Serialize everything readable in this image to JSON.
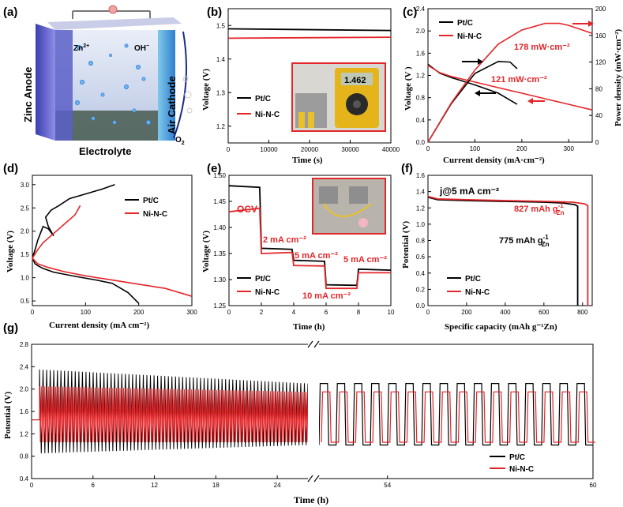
{
  "colors": {
    "black": "#000000",
    "red": "#e4262a",
    "frame": "#000000"
  },
  "panels": {
    "a": {
      "tag": "(a)",
      "zn": "Zn",
      "zn_sup": "2+",
      "oh": "OH",
      "oh_sup": "−",
      "anode": "Zinc Anode",
      "cathode": "Air Cathode",
      "electrolyte": "Electrolyte",
      "o2": "O",
      "o2_sub": "2"
    },
    "b": {
      "tag": "(b)",
      "xlabel": "Time (s)",
      "ylabel": "Voltage (V)",
      "xticks": [
        "0",
        "10000",
        "20000",
        "30000",
        "40000"
      ],
      "yticks": [
        "1.5",
        "1.4",
        "1.3",
        "1.2"
      ],
      "legend": [
        "Pt/C",
        "Ni-N-C"
      ],
      "meter_reading": "1.462"
    },
    "c": {
      "tag": "(c)",
      "xlabel": "Current density (mA·cm⁻²)",
      "ylabel": "Voltage (V )",
      "y2label": "Power density (mW·cm⁻²)",
      "xticks": [
        "0",
        "100",
        "200",
        "300"
      ],
      "yticks": [
        "0.0",
        "0.4",
        "0.8",
        "1.2",
        "1.6",
        "2.0",
        "2.4"
      ],
      "y2ticks": [
        "0",
        "40",
        "80",
        "120",
        "160",
        "200"
      ],
      "legend": [
        "Pt/C",
        "Ni-N-C"
      ],
      "ann1": "178 mW·cm⁻²",
      "ann2": "121 mW·cm⁻²"
    },
    "d": {
      "tag": "(d)",
      "xlabel": "Current density (mA cm⁻²)",
      "ylabel": "Voltage (V)",
      "xticks": [
        "0",
        "100",
        "200",
        "300"
      ],
      "yticks": [
        "0.5",
        "1.0",
        "1.5",
        "2.0",
        "2.5",
        "3.0"
      ],
      "legend": [
        "Pt/C",
        "Ni-N-C"
      ]
    },
    "e": {
      "tag": "(e)",
      "xlabel": "Time (h)",
      "ylabel": "Voltage (V)",
      "xticks": [
        "0",
        "2",
        "4",
        "6",
        "8",
        "10"
      ],
      "yticks": [
        "1.25",
        "1.30",
        "1.35",
        "1.40",
        "1.45",
        "1.50"
      ],
      "legend": [
        "Pt/C",
        "Ni-N-C"
      ],
      "labels": [
        "OCV",
        "2 mA cm⁻²",
        "5 mA cm⁻²",
        "5 mA cm⁻²",
        "10 mA cm⁻²"
      ]
    },
    "f": {
      "tag": "(f)",
      "xlabel": "Specific capacity (mAh g⁻¹Zn)",
      "ylabel": "Potential (V)",
      "xticks": [
        "0",
        "200",
        "400",
        "600",
        "800"
      ],
      "yticks": [
        "0.0",
        "0.2",
        "0.4",
        "0.6",
        "0.8",
        "1.0",
        "1.2",
        "1.4",
        "1.6"
      ],
      "legend": [
        "Pt/C",
        "Ni-N-C"
      ],
      "cond": "j@5 mA cm⁻²",
      "ann_red": "827 mAh g",
      "ann_black": "775 mAh g",
      "sup": "-1",
      "sub": "Zn"
    },
    "g": {
      "tag": "(g)",
      "xlabel": "Time (h)",
      "ylabel": "Potential (V)",
      "xticks": [
        "0",
        "6",
        "12",
        "18",
        "24",
        "54",
        "60"
      ],
      "yticks": [
        "0.4",
        "0.8",
        "1.2",
        "1.6",
        "2.0",
        "2.4",
        "2.8"
      ],
      "legend": [
        "Pt/C",
        "Ni-N-C"
      ]
    }
  },
  "chart_data": [
    {
      "panel": "b",
      "type": "line",
      "xlabel": "Time (s)",
      "ylabel": "Voltage (V)",
      "xlim": [
        0,
        40000
      ],
      "ylim": [
        1.15,
        1.55
      ],
      "series": [
        {
          "name": "Pt/C",
          "x": [
            0,
            40000
          ],
          "y": [
            1.49,
            1.485
          ]
        },
        {
          "name": "Ni-N-C",
          "x": [
            0,
            40000
          ],
          "y": [
            1.462,
            1.465
          ]
        }
      ]
    },
    {
      "panel": "c",
      "type": "line",
      "xlabel": "Current density (mA·cm⁻²)",
      "ylabel": "Voltage (V )",
      "xlim": [
        0,
        350
      ],
      "ylim": [
        0,
        2.4
      ],
      "y2lim": [
        0,
        200
      ],
      "series": [
        {
          "name": "Pt/C",
          "axis": "y",
          "x": [
            0,
            25,
            50,
            100,
            150,
            190
          ],
          "y": [
            1.4,
            1.24,
            1.16,
            1.03,
            0.88,
            0.68
          ]
        },
        {
          "name": "Ni-N-C",
          "axis": "y",
          "x": [
            0,
            25,
            50,
            100,
            150,
            200,
            250,
            300,
            350
          ],
          "y": [
            1.38,
            1.25,
            1.18,
            1.08,
            0.98,
            0.88,
            0.78,
            0.68,
            0.58
          ]
        },
        {
          "name": "Pt/C power",
          "axis": "y2",
          "x": [
            0,
            50,
            100,
            150,
            175,
            190
          ],
          "y": [
            0,
            58,
            103,
            121,
            120,
            110
          ]
        },
        {
          "name": "Ni-N-C power",
          "axis": "y2",
          "x": [
            0,
            50,
            100,
            150,
            200,
            250,
            280,
            300,
            350
          ],
          "y": [
            0,
            59,
            108,
            147,
            168,
            178,
            178,
            175,
            163
          ]
        }
      ]
    },
    {
      "panel": "d",
      "type": "line",
      "xlabel": "Current density (mA cm⁻²)",
      "ylabel": "Voltage (V)",
      "xlim": [
        0,
        300
      ],
      "ylim": [
        0.4,
        3.2
      ],
      "series": [
        {
          "name": "Pt/C",
          "x": [
            0,
            5,
            10,
            20,
            40,
            80,
            120,
            150,
            180,
            200
          ],
          "y": [
            1.42,
            1.3,
            1.26,
            1.2,
            1.12,
            1.03,
            0.95,
            0.88,
            0.68,
            0.45
          ]
        },
        {
          "name": "Pt/C charge",
          "x": [
            0,
            5,
            10,
            15,
            20,
            30,
            40,
            30,
            25,
            35,
            50,
            70,
            100,
            130,
            155
          ],
          "y": [
            1.42,
            1.6,
            1.8,
            1.95,
            2.1,
            2.05,
            1.9,
            2.1,
            2.3,
            2.45,
            2.55,
            2.7,
            2.8,
            2.9,
            3.0
          ]
        },
        {
          "name": "Ni-N-C",
          "x": [
            0,
            10,
            30,
            60,
            100,
            150,
            200,
            250,
            300
          ],
          "y": [
            1.42,
            1.3,
            1.22,
            1.13,
            1.04,
            0.95,
            0.86,
            0.77,
            0.6
          ]
        },
        {
          "name": "Ni-N-C charge",
          "x": [
            0,
            10,
            20,
            40,
            60,
            80,
            90
          ],
          "y": [
            1.42,
            1.6,
            1.75,
            1.95,
            2.15,
            2.35,
            2.55
          ]
        }
      ]
    },
    {
      "panel": "e",
      "type": "line",
      "xlabel": "Time (h)",
      "ylabel": "Voltage (V)",
      "xlim": [
        0,
        10
      ],
      "ylim": [
        1.25,
        1.5
      ],
      "series": [
        {
          "name": "Pt/C",
          "x": [
            0,
            1.9,
            2,
            3.9,
            4,
            5.9,
            6,
            7.9,
            8,
            10
          ],
          "y": [
            1.48,
            1.477,
            1.36,
            1.358,
            1.337,
            1.335,
            1.29,
            1.289,
            1.32,
            1.318
          ]
        },
        {
          "name": "Ni-N-C",
          "x": [
            0,
            1.9,
            2,
            3.9,
            4,
            5.9,
            6,
            7.9,
            8,
            10
          ],
          "y": [
            1.43,
            1.437,
            1.35,
            1.352,
            1.327,
            1.326,
            1.283,
            1.283,
            1.313,
            1.313
          ]
        }
      ]
    },
    {
      "panel": "f",
      "type": "line",
      "xlabel": "Specific capacity (mAh g⁻¹Zn)",
      "ylabel": "Potential (V)",
      "xlim": [
        0,
        850
      ],
      "ylim": [
        0,
        1.6
      ],
      "series": [
        {
          "name": "Pt/C",
          "x": [
            0,
            50,
            200,
            400,
            600,
            700,
            760,
            775,
            775
          ],
          "y": [
            1.33,
            1.3,
            1.29,
            1.28,
            1.27,
            1.26,
            1.24,
            1.22,
            0
          ]
        },
        {
          "name": "Ni-N-C",
          "x": [
            0,
            50,
            200,
            400,
            600,
            750,
            810,
            827,
            827
          ],
          "y": [
            1.34,
            1.31,
            1.3,
            1.29,
            1.28,
            1.27,
            1.25,
            1.23,
            0
          ]
        }
      ]
    },
    {
      "panel": "g",
      "type": "line",
      "xlabel": "Time (h)",
      "ylabel": "Potential (V)",
      "ylim": [
        0.4,
        2.8
      ],
      "x_breaks": [
        [
          0,
          27
        ],
        [
          52,
          60
        ]
      ],
      "series": [
        {
          "name": "Pt/C",
          "charge_V": [
            2.35,
            2.1
          ],
          "discharge_V": [
            0.85,
            1.0
          ]
        },
        {
          "name": "Ni-N-C",
          "charge_V": [
            2.05,
            1.95
          ],
          "discharge_V": [
            1.05,
            1.05
          ]
        }
      ]
    }
  ]
}
